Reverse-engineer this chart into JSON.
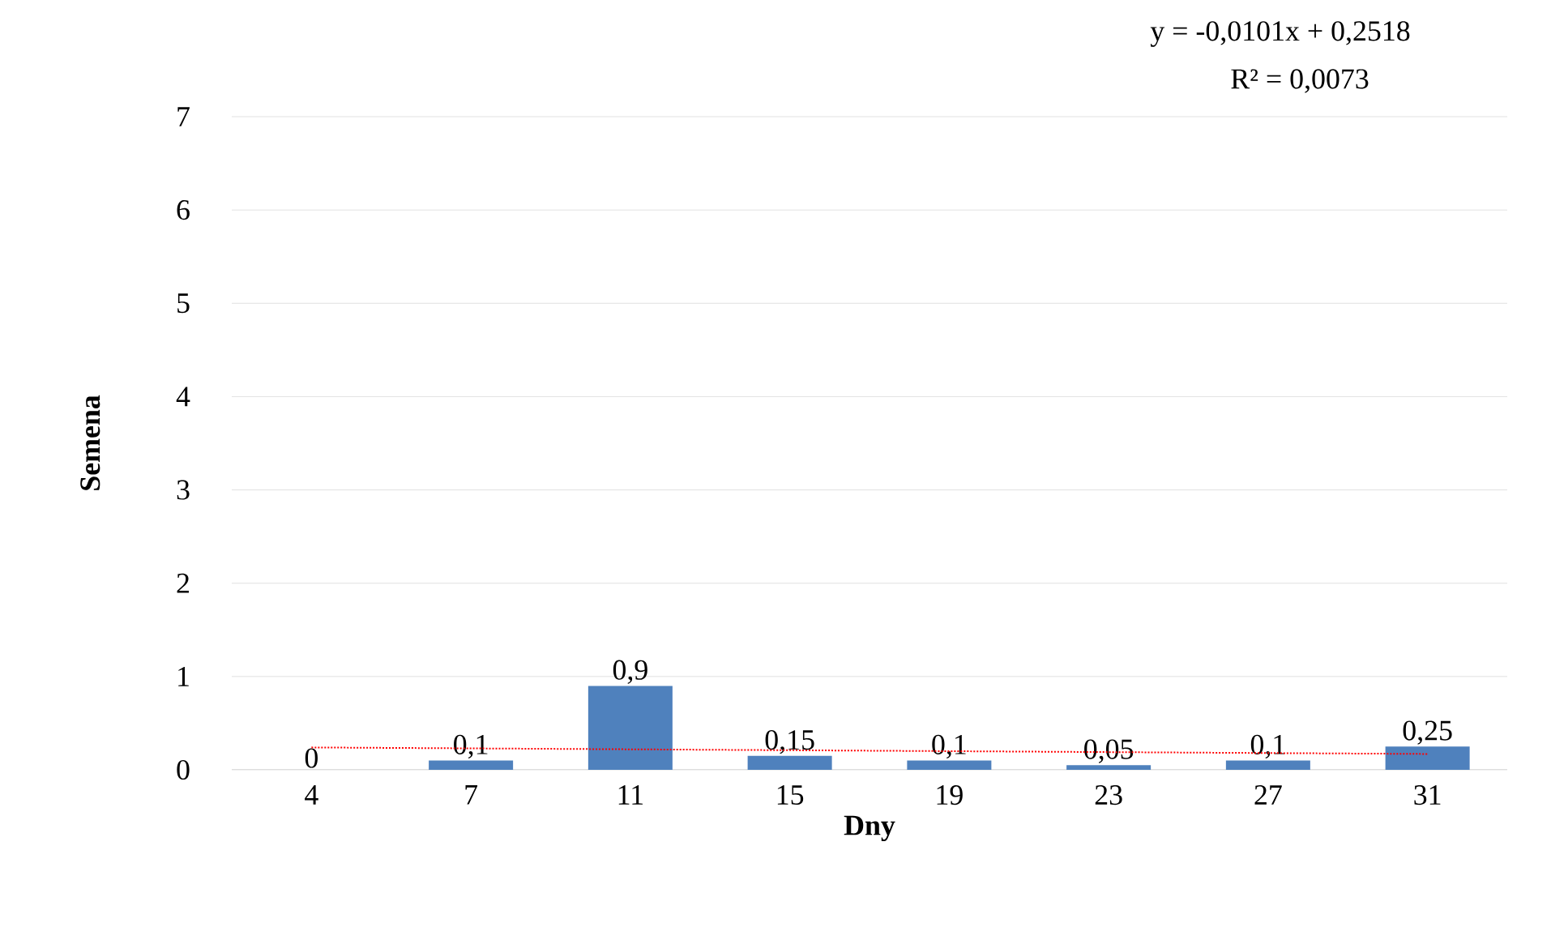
{
  "chart_data": {
    "type": "bar",
    "xlabel": "Dny",
    "ylabel": "Semena",
    "categories": [
      "4",
      "7",
      "11",
      "15",
      "19",
      "23",
      "27",
      "31"
    ],
    "series": [
      {
        "color": "#4f81bd",
        "values": [
          0,
          0.1,
          0.9,
          0.15,
          0.1,
          0.05,
          0.1,
          0.25
        ],
        "value_labels": [
          "0",
          "0,1",
          "0,9",
          "0,15",
          "0,1",
          "0,05",
          "0,1",
          "0,25"
        ]
      },
      {
        "type": "line",
        "color": "#ff0000",
        "line_style": "dotted",
        "marker": "none",
        "values": [
          0.24,
          0.23,
          0.22,
          0.21,
          0.2,
          0.19,
          0.18,
          0.17
        ]
      }
    ],
    "ylim": [
      0,
      7
    ],
    "yticks": [
      0,
      1,
      2,
      3,
      4,
      5,
      6,
      7
    ],
    "grid": "y",
    "annotations": [
      "y = -0,0101x + 0,2518",
      "R² = 0,0073"
    ]
  }
}
